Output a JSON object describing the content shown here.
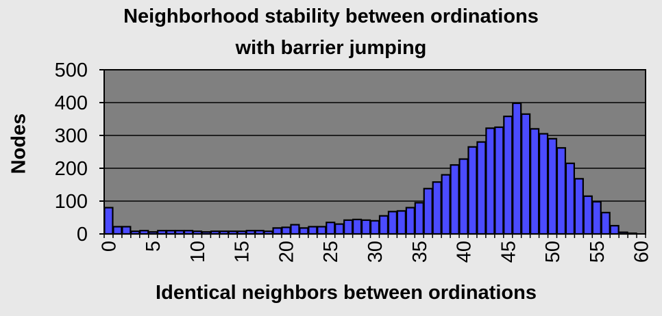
{
  "chart_data": {
    "type": "bar",
    "title_lines": [
      "Neighborhood stability between ordinations",
      "with barrier jumping"
    ],
    "xlabel": "Identical neighbors between ordinations",
    "ylabel": "Nodes",
    "x": [
      0,
      1,
      2,
      3,
      4,
      5,
      6,
      7,
      8,
      9,
      10,
      11,
      12,
      13,
      14,
      15,
      16,
      17,
      18,
      19,
      20,
      21,
      22,
      23,
      24,
      25,
      26,
      27,
      28,
      29,
      30,
      31,
      32,
      33,
      34,
      35,
      36,
      37,
      38,
      39,
      40,
      41,
      42,
      43,
      44,
      45,
      46,
      47,
      48,
      49,
      50,
      51,
      52,
      53,
      54,
      55,
      56,
      57,
      58,
      59,
      60
    ],
    "values": [
      80,
      22,
      22,
      8,
      10,
      6,
      10,
      10,
      10,
      10,
      8,
      6,
      8,
      8,
      8,
      8,
      10,
      10,
      8,
      18,
      20,
      28,
      18,
      22,
      22,
      35,
      30,
      42,
      44,
      42,
      40,
      55,
      68,
      70,
      80,
      95,
      138,
      158,
      180,
      210,
      228,
      265,
      280,
      322,
      325,
      358,
      398,
      365,
      320,
      305,
      290,
      262,
      215,
      168,
      115,
      98,
      65,
      25,
      5,
      2,
      0
    ],
    "xticks": [
      0,
      5,
      10,
      15,
      20,
      25,
      30,
      35,
      40,
      45,
      50,
      55,
      60
    ],
    "yticks": [
      0,
      100,
      200,
      300,
      400,
      500
    ],
    "xlim": [
      0,
      61
    ],
    "ylim": [
      0,
      500
    ],
    "grid": true,
    "colors": {
      "bar_fill": "#4b4bff",
      "bar_stroke": "#000000",
      "plot_bg": "#808080",
      "page_bg": "#e8e8e8"
    }
  }
}
